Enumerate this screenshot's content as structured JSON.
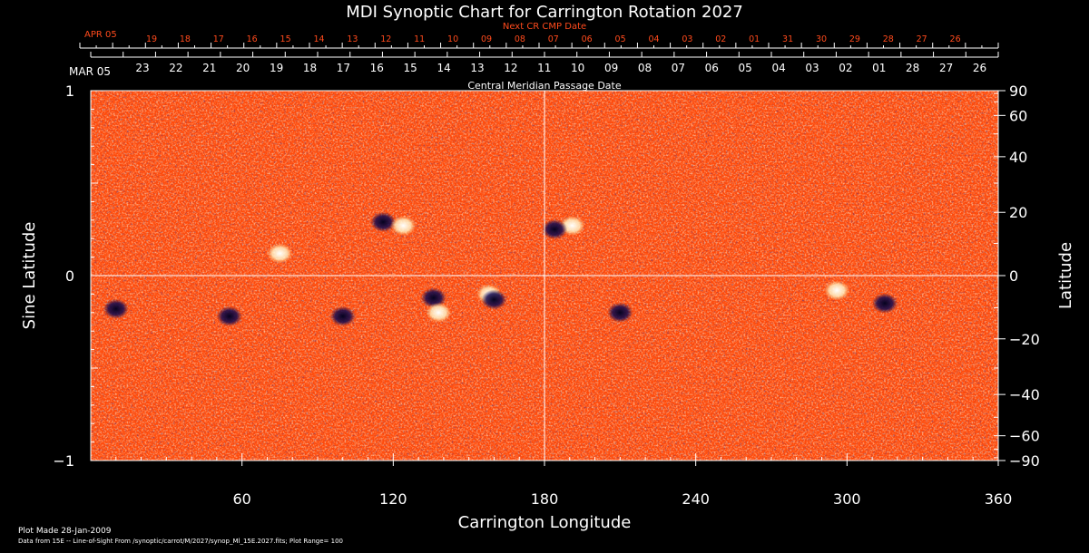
{
  "chart_data": {
    "type": "heatmap",
    "title": "MDI Synoptic Chart for Carrington Rotation 2027",
    "xlabel": "Carrington Longitude",
    "ylabel_left": "Sine Latitude",
    "ylabel_right": "Latitude",
    "xlim": [
      0,
      360
    ],
    "ylim": [
      -1,
      1
    ],
    "x_ticks": [
      60,
      120,
      180,
      240,
      300,
      360
    ],
    "y_ticks_left": [
      {
        "value": 1,
        "label": "1"
      },
      {
        "value": 0,
        "label": "0"
      },
      {
        "value": -1,
        "label": "−1"
      }
    ],
    "y_ticks_right": [
      {
        "deg": 90,
        "label": "90"
      },
      {
        "deg": 60,
        "label": "60"
      },
      {
        "deg": 40,
        "label": "40"
      },
      {
        "deg": 20,
        "label": "20"
      },
      {
        "deg": 0,
        "label": "0"
      },
      {
        "deg": -20,
        "label": "−20"
      },
      {
        "deg": -40,
        "label": "−40"
      },
      {
        "deg": -60,
        "label": "−60"
      },
      {
        "deg": -90,
        "label": "−90"
      }
    ],
    "top_axis": {
      "start_label": "MAR 05",
      "dates": [
        "23",
        "22",
        "21",
        "20",
        "19",
        "18",
        "17",
        "16",
        "15",
        "14",
        "13",
        "12",
        "11",
        "10",
        "09",
        "08",
        "07",
        "06",
        "05",
        "04",
        "03",
        "02",
        "01",
        "28",
        "27",
        "26"
      ],
      "label": "Central Meridian Passage Date"
    },
    "next_axis": {
      "start_label": "APR 05",
      "dates": [
        "19",
        "18",
        "17",
        "16",
        "15",
        "14",
        "13",
        "12",
        "11",
        "10",
        "09",
        "08",
        "07",
        "06",
        "05",
        "04",
        "03",
        "02",
        "01",
        "31",
        "30",
        "29",
        "28",
        "27",
        "26"
      ],
      "label": "Next CR CMP Date"
    },
    "reference_lines": {
      "x": 180,
      "y": 0
    },
    "features": [
      {
        "lon": 158,
        "sinlat": -0.1,
        "polarity": "positive"
      },
      {
        "lon": 160,
        "sinlat": -0.13,
        "polarity": "negative"
      },
      {
        "lon": 116,
        "sinlat": 0.29,
        "polarity": "negative"
      },
      {
        "lon": 124,
        "sinlat": 0.27,
        "polarity": "positive"
      },
      {
        "lon": 191,
        "sinlat": 0.27,
        "polarity": "positive"
      },
      {
        "lon": 184,
        "sinlat": 0.25,
        "polarity": "negative"
      },
      {
        "lon": 136,
        "sinlat": -0.12,
        "polarity": "negative"
      },
      {
        "lon": 138,
        "sinlat": -0.2,
        "polarity": "positive"
      },
      {
        "lon": 55,
        "sinlat": -0.22,
        "polarity": "negative"
      },
      {
        "lon": 10,
        "sinlat": -0.18,
        "polarity": "negative"
      },
      {
        "lon": 100,
        "sinlat": -0.22,
        "polarity": "negative"
      },
      {
        "lon": 296,
        "sinlat": -0.08,
        "polarity": "positive"
      },
      {
        "lon": 315,
        "sinlat": -0.15,
        "polarity": "negative"
      },
      {
        "lon": 75,
        "sinlat": 0.12,
        "polarity": "positive"
      },
      {
        "lon": 210,
        "sinlat": -0.2,
        "polarity": "negative"
      }
    ],
    "colors": {
      "background": "#ff4a0a",
      "positive": "#ffffff",
      "negative": "#140a50",
      "axis": "#ffffff",
      "next_axis": "#ff4a1c"
    }
  },
  "footer": {
    "plot_made": "Plot Made 28-Jan-2009",
    "data_from": "Data from 15E -- Line-of-Sight From /synoptic/carrot/M/2027/synop_Ml_15E.2027.fits; Plot Range=  100"
  }
}
